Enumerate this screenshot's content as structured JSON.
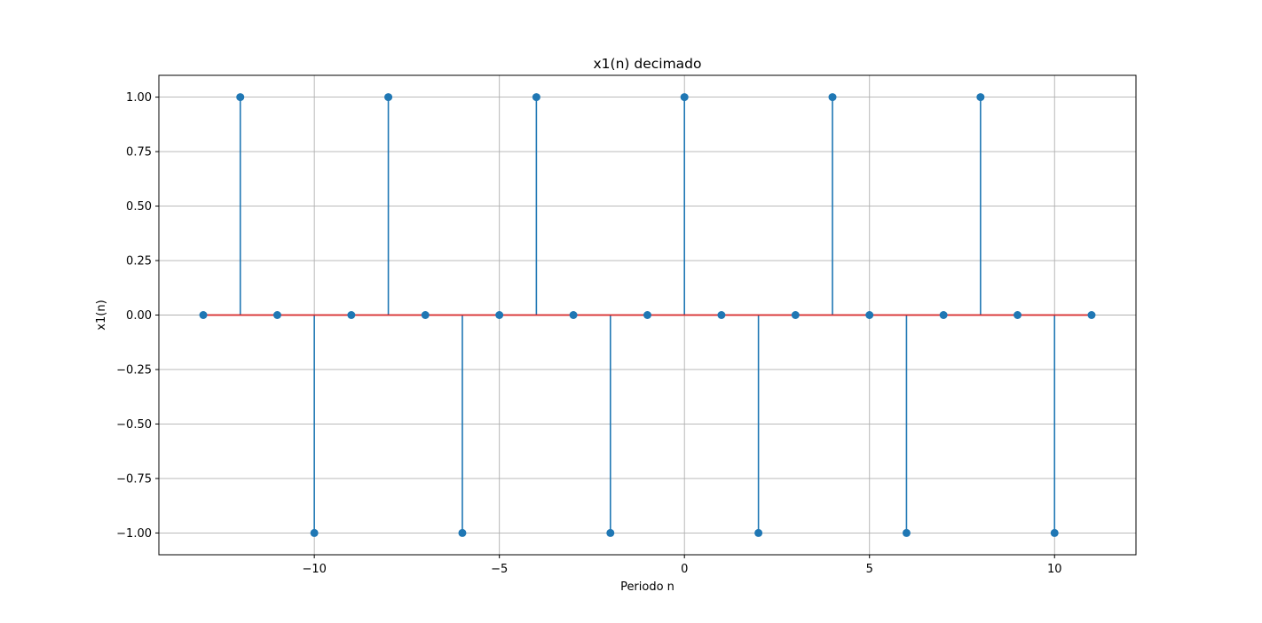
{
  "chart_data": {
    "type": "stem",
    "title": "x1(n) decimado",
    "xlabel": "Periodo n",
    "ylabel": "x1(n)",
    "x": [
      -13,
      -12,
      -11,
      -10,
      -9,
      -8,
      -7,
      -6,
      -5,
      -4,
      -3,
      -2,
      -1,
      0,
      1,
      2,
      3,
      4,
      5,
      6,
      7,
      8,
      9,
      10,
      11
    ],
    "values": [
      0,
      1,
      0,
      -1,
      0,
      1,
      0,
      -1,
      0,
      1,
      0,
      -1,
      0,
      1,
      0,
      -1,
      0,
      1,
      0,
      -1,
      0,
      1,
      0,
      -1,
      0
    ],
    "xlim": [
      -14.2,
      12.2
    ],
    "ylim": [
      -1.1,
      1.1
    ],
    "xticks": [
      -10,
      -5,
      0,
      5,
      10
    ],
    "xtick_labels": [
      "−10",
      "−5",
      "0",
      "5",
      "10"
    ],
    "yticks": [
      1.0,
      0.75,
      0.5,
      0.25,
      0.0,
      -0.25,
      -0.5,
      -0.75,
      -1.0
    ],
    "ytick_labels": [
      "1.00",
      "0.75",
      "0.50",
      "0.25",
      "0.00",
      "−0.25",
      "−0.50",
      "−0.75",
      "−1.00"
    ],
    "grid": true,
    "colors": {
      "stem": "#1f77b4",
      "marker": "#1f77b4",
      "baseline": "#d62728",
      "grid": "#b0b0b0",
      "axes": "#000000"
    }
  }
}
